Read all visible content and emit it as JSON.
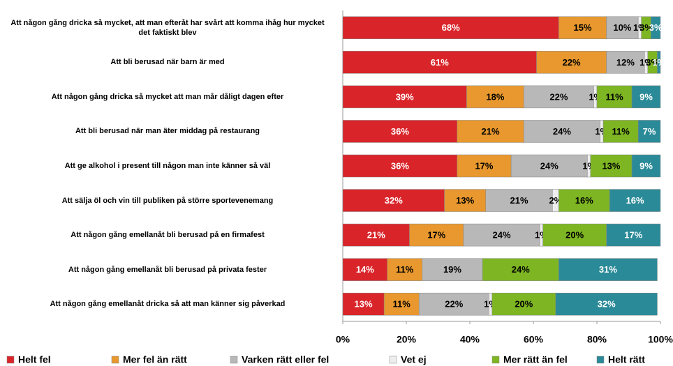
{
  "chart_data": {
    "type": "stacked_barh",
    "categories": [
      "Att någon gång dricka så mycket, att man efteråt har svårt att komma ihåg hur mycket det faktiskt blev",
      "Att bli berusad när barn är med",
      "Att någon gång dricka så mycket att man mår dåligt dagen efter",
      "Att bli berusad när man äter middag på restaurang",
      "Att ge alkohol i present till någon man inte känner så väl",
      "Att sälja öl och vin till publiken på större sportevenemang",
      "Att någon gång emellanåt bli berusad på en firmafest",
      "Att någon gång emellanåt bli berusad på privata fester",
      "Att någon gång emellanåt dricka så att man känner sig påverkad"
    ],
    "series": [
      {
        "name": "Helt fel",
        "color": "#d9252a",
        "label_color": "#ffffff",
        "values": [
          68,
          61,
          39,
          36,
          36,
          32,
          21,
          14,
          13
        ],
        "value_labels": [
          "68%",
          "61%",
          "39%",
          "36%",
          "36%",
          "32%",
          "21%",
          "14%",
          "13%"
        ]
      },
      {
        "name": "Mer fel än rätt",
        "color": "#e8982e",
        "label_color": "#000000",
        "values": [
          15,
          22,
          18,
          21,
          17,
          13,
          17,
          11,
          11
        ],
        "value_labels": [
          "15%",
          "22%",
          "18%",
          "21%",
          "17%",
          "13%",
          "17%",
          "11%",
          "11%"
        ]
      },
      {
        "name": "Varken rätt eller fel",
        "color": "#b8b8b8",
        "label_color": "#000000",
        "values": [
          10,
          12,
          22,
          24,
          24,
          21,
          24,
          19,
          22
        ],
        "value_labels": [
          "10%",
          "12%",
          "22%",
          "24%",
          "24%",
          "21%",
          "24%",
          "19%",
          "22%"
        ]
      },
      {
        "name": "Vet ej",
        "color": "#eeeeee",
        "label_color": "#000000",
        "values": [
          1,
          1,
          1,
          1,
          1,
          2,
          1,
          null,
          1
        ],
        "value_labels": [
          "1%",
          "1%",
          "1%",
          "1%",
          "1%",
          "2%",
          "1%",
          null,
          "1%"
        ]
      },
      {
        "name": "Mer rätt än fel",
        "color": "#7db622",
        "label_color": "#000000",
        "values": [
          3,
          3,
          11,
          11,
          13,
          16,
          20,
          24,
          20
        ],
        "value_labels": [
          "3%",
          "3%",
          "11%",
          "11%",
          "13%",
          "16%",
          "20%",
          "24%",
          "20%"
        ]
      },
      {
        "name": "Helt rätt",
        "color": "#2b8a98",
        "label_color": "#ffffff",
        "values": [
          3,
          1,
          9,
          7,
          9,
          16,
          17,
          31,
          32
        ],
        "value_labels": [
          "3%",
          "1%",
          "9%",
          "7%",
          "9%",
          "16%",
          "17%",
          "31%",
          "32%"
        ]
      }
    ],
    "xlim": [
      0,
      100
    ],
    "xticks": [
      {
        "value": 0,
        "label": "0%"
      },
      {
        "value": 20,
        "label": "20%"
      },
      {
        "value": 40,
        "label": "40%"
      },
      {
        "value": 60,
        "label": "60%"
      },
      {
        "value": 80,
        "label": "80%"
      },
      {
        "value": 100,
        "label": "100%"
      }
    ],
    "legend": "bottom"
  }
}
